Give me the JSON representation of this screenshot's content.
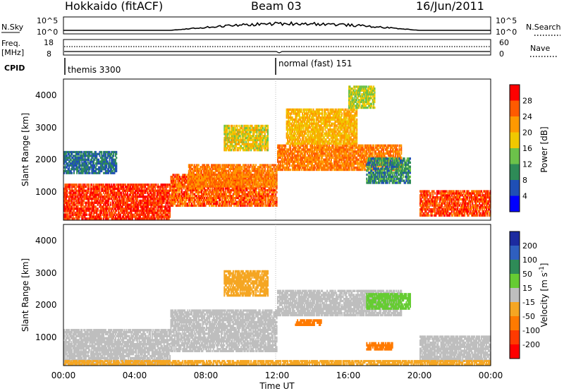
{
  "header": {
    "station": "Hokkaido (fitACF)",
    "beam": "Beam 03",
    "date": "16/Jun/2011"
  },
  "summary": {
    "nsky_label": "N.Sky",
    "nsearch_label": "N.Search",
    "freq_label_line1": "Freq.",
    "freq_label_line2": "[MHz]",
    "nave_label": "Nave",
    "cpid_label": "CPID",
    "left_ticks_top": [
      "10^5",
      "10^0"
    ],
    "right_ticks_top": [
      "10^5",
      "10^0"
    ],
    "left_ticks_freq": [
      "18",
      "8"
    ],
    "right_ticks_nave": [
      "60",
      "0"
    ],
    "cpid_segments": [
      {
        "label": "themis 3300",
        "start_hour": 0
      },
      {
        "label": "normal (fast) 151",
        "start_hour": 12
      }
    ]
  },
  "x_axis": {
    "label": "Time UT",
    "ticks": [
      "00:00",
      "04:00",
      "08:00",
      "12:00",
      "16:00",
      "20:00",
      "00:00"
    ]
  },
  "power_panel": {
    "ylabel": "Slant Range [km]",
    "yticks": [
      "1000",
      "2000",
      "3000",
      "4000"
    ],
    "cbar_label": "Power [dB]",
    "cbar_ticks": [
      "4",
      "8",
      "12",
      "16",
      "20",
      "24",
      "28"
    ],
    "cbar_colors": [
      "#0000ff",
      "#1f4fb5",
      "#2e8b57",
      "#6cc24a",
      "#f0c800",
      "#ff9900",
      "#ff5a00",
      "#ff0000"
    ]
  },
  "velocity_panel": {
    "ylabel": "Slant Range [km]",
    "yticks": [
      "1000",
      "2000",
      "3000",
      "4000"
    ],
    "cbar_label": "Velocity [m s^-1]",
    "cbar_ticks": [
      "200",
      "100",
      "50",
      "15",
      "-15",
      "-50",
      "-100",
      "-200"
    ],
    "cbar_colors": [
      "#1c2ba0",
      "#2f5fbf",
      "#2e8b57",
      "#66cc33",
      "#bebebe",
      "#f5a623",
      "#ff7a00",
      "#ff3a00",
      "#ff0000"
    ]
  },
  "chart_data": {
    "type": "heatmap",
    "xlabel": "Time UT",
    "ylabel": "Slant Range [km]",
    "xlim_hours": [
      0,
      24
    ],
    "ylim_km": [
      180,
      4500
    ],
    "power_bands": [
      {
        "t0": 0.0,
        "t1": 6.0,
        "r0": 200,
        "r1": 1300,
        "power": 28
      },
      {
        "t0": 6.0,
        "t1": 12.0,
        "r0": 600,
        "r1": 1600,
        "power": 26
      },
      {
        "t0": 7.0,
        "t1": 12.0,
        "r0": 1200,
        "r1": 1900,
        "power": 24
      },
      {
        "t0": 12.0,
        "t1": 19.0,
        "r0": 1700,
        "r1": 2500,
        "power": 24
      },
      {
        "t0": 20.0,
        "t1": 24.0,
        "r0": 300,
        "r1": 1100,
        "power": 27
      },
      {
        "t0": 0.0,
        "t1": 3.0,
        "r0": 1600,
        "r1": 2300,
        "power": 8
      },
      {
        "t0": 9.0,
        "t1": 11.5,
        "r0": 2300,
        "r1": 3100,
        "power": 18
      },
      {
        "t0": 12.5,
        "t1": 16.5,
        "r0": 2500,
        "r1": 3600,
        "power": 20
      },
      {
        "t0": 16.0,
        "t1": 17.5,
        "r0": 3600,
        "r1": 4300,
        "power": 16
      },
      {
        "t0": 17.0,
        "t1": 19.5,
        "r0": 1300,
        "r1": 2100,
        "power": 10
      }
    ],
    "velocity_bands": [
      {
        "t0": 0.0,
        "t1": 6.0,
        "r0": 200,
        "r1": 1300,
        "velocity": 0
      },
      {
        "t0": 6.0,
        "t1": 12.0,
        "r0": 600,
        "r1": 1900,
        "velocity": 0
      },
      {
        "t0": 12.0,
        "t1": 19.0,
        "r0": 1700,
        "r1": 2500,
        "velocity": 0
      },
      {
        "t0": 20.0,
        "t1": 24.0,
        "r0": 300,
        "r1": 1100,
        "velocity": 0
      },
      {
        "t0": 9.0,
        "t1": 11.5,
        "r0": 2300,
        "r1": 3100,
        "velocity": -30
      },
      {
        "t0": 17.0,
        "t1": 19.5,
        "r0": 1900,
        "r1": 2400,
        "velocity": 30
      },
      {
        "t0": 13.0,
        "t1": 14.5,
        "r0": 1400,
        "r1": 1600,
        "velocity": -60
      },
      {
        "t0": 17.0,
        "t1": 18.5,
        "r0": 650,
        "r1": 900,
        "velocity": -80
      },
      {
        "t0": 0.0,
        "t1": 24.0,
        "r0": 200,
        "r1": 350,
        "velocity": -40
      }
    ]
  }
}
